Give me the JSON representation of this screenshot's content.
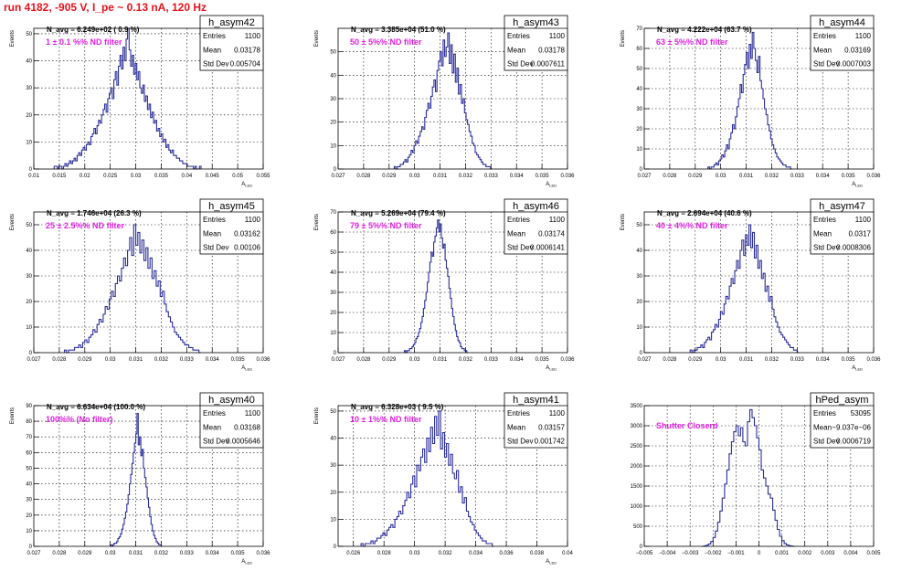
{
  "page_title": "run 4182,  -905 V, I_pe ~ 0.13 nA, 120 Hz",
  "colors": {
    "title": "#e8121c",
    "histogram": "#2b2e9a",
    "annotation": "#e020e0",
    "frame": "#000000",
    "grid": "#000000"
  },
  "chart_data": [
    {
      "type": "histogram",
      "title": "h_asym42",
      "stats": {
        "entries_label": "Entries",
        "entries": "1100",
        "mean_label": "Mean",
        "mean": "0.03178",
        "std_label": "Std Dev",
        "std": "0.005704"
      },
      "n_avg": "N_avg = 6.249e+02 ( 0.9 %)",
      "annotation": "1 ± 0.1 %% ND filter",
      "ylabel": "Events",
      "xlabel": "A_LED",
      "xlim": [
        0.01,
        0.055
      ],
      "ylim": [
        0,
        52
      ],
      "xticks": [
        0.01,
        0.015,
        0.02,
        0.025,
        0.03,
        0.035,
        0.04,
        0.045,
        0.05,
        0.055
      ],
      "xtick_labels": [
        "0.01",
        "0.015",
        "0.02",
        "0.025",
        "0.03",
        "0.035",
        "0.04",
        "0.045",
        "0.05",
        "0.055"
      ],
      "yticks": [
        0,
        10,
        20,
        30,
        40,
        50
      ],
      "ytick_labels": [
        "0",
        "10",
        "20",
        "30",
        "40",
        "50"
      ],
      "bins": {
        "xmin": 0.014,
        "width": 0.0003,
        "values": [
          1,
          1,
          0,
          1,
          1,
          0,
          1,
          2,
          1,
          2,
          3,
          2,
          3,
          4,
          3,
          5,
          6,
          5,
          7,
          8,
          7,
          9,
          10,
          9,
          12,
          13,
          15,
          13,
          16,
          18,
          17,
          20,
          22,
          24,
          21,
          26,
          28,
          30,
          26,
          33,
          36,
          31,
          38,
          42,
          37,
          45,
          40,
          48,
          52,
          44,
          38,
          42,
          35,
          39,
          33,
          36,
          30,
          28,
          31,
          25,
          27,
          22,
          24,
          19,
          21,
          17,
          18,
          14,
          15,
          12,
          13,
          10,
          11,
          8,
          9,
          7,
          6,
          7,
          5,
          5,
          4,
          4,
          3,
          3,
          2,
          2,
          2,
          1,
          1,
          1,
          1,
          0,
          1,
          0,
          0,
          1
        ]
      }
    },
    {
      "type": "histogram",
      "title": "h_asym43",
      "stats": {
        "entries_label": "Entries",
        "entries": "1100",
        "mean_label": "Mean",
        "mean": "0.03178",
        "std_label": "Std Dev",
        "std": "0.0007611"
      },
      "n_avg": "N_avg = 3.385e+04 (51.0 %)",
      "annotation": "50 ± 5%% ND filter",
      "ylabel": "Events",
      "xlabel": "A_LED",
      "xlim": [
        0.027,
        0.036
      ],
      "ylim": [
        0,
        60
      ],
      "xticks": [
        0.027,
        0.028,
        0.029,
        0.03,
        0.031,
        0.032,
        0.033,
        0.034,
        0.035,
        0.036
      ],
      "xtick_labels": [
        "0.027",
        "0.028",
        "0.029",
        "0.03",
        "0.031",
        "0.032",
        "0.033",
        "0.034",
        "0.035",
        "0.036"
      ],
      "yticks": [
        0,
        10,
        20,
        30,
        40,
        50
      ],
      "ytick_labels": [
        "0",
        "10",
        "20",
        "30",
        "40",
        "50"
      ],
      "bins": {
        "xmin": 0.0292,
        "width": 6e-05,
        "values": [
          1,
          0,
          1,
          1,
          2,
          2,
          3,
          4,
          3,
          5,
          6,
          8,
          7,
          10,
          12,
          11,
          14,
          16,
          18,
          17,
          22,
          25,
          28,
          26,
          31,
          35,
          38,
          33,
          42,
          46,
          50,
          44,
          55,
          48,
          52,
          58,
          45,
          53,
          41,
          49,
          37,
          43,
          32,
          36,
          28,
          30,
          24,
          21,
          19,
          16,
          14,
          11,
          10,
          7,
          6,
          5,
          4,
          3,
          2,
          2,
          1,
          1,
          1,
          0
        ]
      }
    },
    {
      "type": "histogram",
      "title": "h_asym44",
      "stats": {
        "entries_label": "Entries",
        "entries": "1100",
        "mean_label": "Mean",
        "mean": "0.03169",
        "std_label": "Std Dev",
        "std": "0.0007003"
      },
      "n_avg": "N_avg = 4.222e+04 (63.7 %)",
      "annotation": "63 ± 5%% ND filter",
      "ylabel": "Events",
      "xlabel": "A_LED",
      "xlim": [
        0.027,
        0.036
      ],
      "ylim": [
        0,
        70
      ],
      "xticks": [
        0.027,
        0.028,
        0.029,
        0.03,
        0.031,
        0.032,
        0.033,
        0.034,
        0.035,
        0.036
      ],
      "xtick_labels": [
        "0.027",
        "0.028",
        "0.029",
        "0.03",
        "0.031",
        "0.032",
        "0.033",
        "0.034",
        "0.035",
        "0.036"
      ],
      "yticks": [
        0,
        10,
        20,
        30,
        40,
        50,
        60,
        70
      ],
      "ytick_labels": [
        "0",
        "10",
        "20",
        "30",
        "40",
        "50",
        "60",
        "70"
      ],
      "bins": {
        "xmin": 0.0295,
        "width": 6e-05,
        "values": [
          1,
          0,
          1,
          1,
          2,
          3,
          2,
          4,
          5,
          7,
          6,
          9,
          12,
          10,
          15,
          18,
          22,
          20,
          26,
          31,
          35,
          42,
          38,
          47,
          52,
          58,
          50,
          62,
          55,
          68,
          60,
          54,
          48,
          56,
          44,
          40,
          35,
          30,
          27,
          22,
          19,
          15,
          12,
          10,
          8,
          6,
          5,
          4,
          3,
          2,
          2,
          1,
          1,
          1,
          0
        ]
      }
    },
    {
      "type": "histogram",
      "title": "h_asym45",
      "stats": {
        "entries_label": "Entries",
        "entries": "1100",
        "mean_label": "Mean",
        "mean": "0.03162",
        "std_label": "Std Dev",
        "std": "0.00106"
      },
      "n_avg": "N_avg = 1.746e+04 (26.3 %)",
      "annotation": "25 ± 2.5%% ND filter",
      "ylabel": "Events",
      "xlabel": "A_LED",
      "xlim": [
        0.027,
        0.036
      ],
      "ylim": [
        0,
        55
      ],
      "xticks": [
        0.027,
        0.028,
        0.029,
        0.03,
        0.031,
        0.032,
        0.033,
        0.034,
        0.035,
        0.036
      ],
      "xtick_labels": [
        "0.027",
        "0.028",
        "0.029",
        "0.03",
        "0.031",
        "0.032",
        "0.033",
        "0.034",
        "0.035",
        "0.036"
      ],
      "yticks": [
        0,
        10,
        20,
        30,
        40,
        50
      ],
      "ytick_labels": [
        "0",
        "10",
        "20",
        "30",
        "40",
        "50"
      ],
      "bins": {
        "xmin": 0.0282,
        "width": 8e-05,
        "values": [
          1,
          0,
          1,
          1,
          1,
          2,
          2,
          3,
          2,
          4,
          5,
          4,
          6,
          7,
          9,
          8,
          11,
          13,
          12,
          15,
          18,
          17,
          21,
          24,
          22,
          27,
          30,
          28,
          33,
          37,
          34,
          40,
          45,
          38,
          50,
          42,
          47,
          39,
          44,
          36,
          41,
          33,
          37,
          29,
          32,
          26,
          28,
          22,
          24,
          19,
          16,
          14,
          12,
          10,
          8,
          7,
          6,
          5,
          4,
          3,
          3,
          2,
          2,
          1,
          1,
          1,
          0
        ]
      }
    },
    {
      "type": "histogram",
      "title": "h_asym46",
      "stats": {
        "entries_label": "Entries",
        "entries": "1100",
        "mean_label": "Mean",
        "mean": "0.03174",
        "std_label": "Std Dev",
        "std": "0.0006141"
      },
      "n_avg": "N_avg = 5.269e+04 (79.4 %)",
      "annotation": "79 ± 5%% ND filter",
      "ylabel": "Events",
      "xlabel": "A_LED",
      "xlim": [
        0.027,
        0.036
      ],
      "ylim": [
        0,
        70
      ],
      "xticks": [
        0.027,
        0.028,
        0.029,
        0.03,
        0.031,
        0.032,
        0.033,
        0.034,
        0.035,
        0.036
      ],
      "xtick_labels": [
        "0.027",
        "0.028",
        "0.029",
        "0.03",
        "0.031",
        "0.032",
        "0.033",
        "0.034",
        "0.035",
        "0.036"
      ],
      "yticks": [
        0,
        10,
        20,
        30,
        40,
        50,
        60,
        70
      ],
      "ytick_labels": [
        "0",
        "10",
        "20",
        "30",
        "40",
        "50",
        "60",
        "70"
      ],
      "bins": {
        "xmin": 0.0296,
        "width": 5e-05,
        "values": [
          1,
          0,
          1,
          1,
          2,
          2,
          3,
          4,
          5,
          7,
          8,
          10,
          12,
          15,
          18,
          22,
          26,
          30,
          35,
          40,
          45,
          50,
          48,
          55,
          58,
          62,
          66,
          60,
          64,
          57,
          52,
          54,
          46,
          42,
          38,
          32,
          27,
          22,
          18,
          14,
          11,
          8,
          6,
          5,
          3,
          2,
          2,
          1,
          1,
          0
        ]
      }
    },
    {
      "type": "histogram",
      "title": "h_asym47",
      "stats": {
        "entries_label": "Entries",
        "entries": "1100",
        "mean_label": "Mean",
        "mean": "0.0317",
        "std_label": "Std Dev",
        "std": "0.0008306"
      },
      "n_avg": "N_avg = 2.694e+04 (40.6 %)",
      "annotation": "40 ± 4%% ND filter",
      "ylabel": "Events",
      "xlabel": "A_LED",
      "xlim": [
        0.027,
        0.036
      ],
      "ylim": [
        0,
        55
      ],
      "xticks": [
        0.027,
        0.028,
        0.029,
        0.03,
        0.031,
        0.032,
        0.033,
        0.034,
        0.035,
        0.036
      ],
      "xtick_labels": [
        "0.027",
        "0.028",
        "0.029",
        "0.03",
        "0.031",
        "0.032",
        "0.033",
        "0.034",
        "0.035",
        "0.036"
      ],
      "yticks": [
        0,
        10,
        20,
        30,
        40,
        50
      ],
      "ytick_labels": [
        "0",
        "10",
        "20",
        "30",
        "40",
        "50"
      ],
      "bins": {
        "xmin": 0.0288,
        "width": 7e-05,
        "values": [
          1,
          0,
          1,
          1,
          2,
          2,
          3,
          2,
          4,
          5,
          6,
          5,
          8,
          9,
          11,
          10,
          13,
          16,
          15,
          19,
          22,
          21,
          26,
          29,
          27,
          32,
          36,
          33,
          40,
          44,
          38,
          46,
          42,
          50,
          41,
          47,
          37,
          42,
          33,
          36,
          29,
          31,
          24,
          26,
          20,
          22,
          17,
          14,
          12,
          10,
          8,
          7,
          6,
          5,
          4,
          3,
          2,
          2,
          1,
          1,
          0
        ]
      }
    },
    {
      "type": "histogram",
      "title": "h_asym40",
      "stats": {
        "entries_label": "Entries",
        "entries": "1100",
        "mean_label": "Mean",
        "mean": "0.03168",
        "std_label": "Std Dev",
        "std": "0.0005646"
      },
      "n_avg": "N_avg = 6.634e+04 (100.0 %)",
      "annotation": "100%% (No filter)",
      "ylabel": "Events",
      "xlabel": "A_LED",
      "xlim": [
        0.027,
        0.036
      ],
      "ylim": [
        0,
        90
      ],
      "xticks": [
        0.027,
        0.028,
        0.029,
        0.03,
        0.031,
        0.032,
        0.033,
        0.034,
        0.035,
        0.036
      ],
      "xtick_labels": [
        "0.027",
        "0.028",
        "0.029",
        "0.03",
        "0.031",
        "0.032",
        "0.033",
        "0.034",
        "0.035",
        "0.036"
      ],
      "yticks": [
        0,
        10,
        20,
        30,
        40,
        50,
        60,
        70,
        80,
        90
      ],
      "ytick_labels": [
        "0",
        "10",
        "20",
        "30",
        "40",
        "50",
        "60",
        "70",
        "80",
        "90"
      ],
      "bins": {
        "xmin": 0.03,
        "width": 5e-05,
        "values": [
          1,
          0,
          1,
          2,
          2,
          3,
          5,
          6,
          8,
          11,
          14,
          18,
          22,
          27,
          33,
          40,
          46,
          53,
          60,
          66,
          72,
          85,
          65,
          70,
          58,
          62,
          50,
          44,
          38,
          31,
          25,
          19,
          14,
          10,
          7,
          5,
          3,
          2,
          1,
          1,
          0
        ]
      }
    },
    {
      "type": "histogram",
      "title": "h_asym41",
      "stats": {
        "entries_label": "Entries",
        "entries": "1100",
        "mean_label": "Mean",
        "mean": "0.03157",
        "std_label": "Std Dev",
        "std": "0.001742"
      },
      "n_avg": "N_avg = 6.328e+03 ( 9.5 %)",
      "annotation": "10 ± 1%% ND filter",
      "ylabel": "Events",
      "xlabel": "A_LED",
      "xlim": [
        0.025,
        0.04
      ],
      "ylim": [
        0,
        52
      ],
      "xticks": [
        0.026,
        0.028,
        0.03,
        0.032,
        0.034,
        0.036,
        0.038,
        0.04
      ],
      "xtick_labels": [
        "0.026",
        "0.028",
        "0.03",
        "0.032",
        "0.034",
        "0.036",
        "0.038",
        "0.04"
      ],
      "yticks": [
        0,
        10,
        20,
        30,
        40,
        50
      ],
      "ytick_labels": [
        "0",
        "10",
        "20",
        "30",
        "40",
        "50"
      ],
      "bins": {
        "xmin": 0.0265,
        "width": 0.00013,
        "values": [
          1,
          0,
          1,
          1,
          1,
          2,
          1,
          2,
          3,
          3,
          4,
          5,
          4,
          6,
          7,
          8,
          7,
          10,
          11,
          13,
          12,
          15,
          17,
          20,
          18,
          23,
          26,
          22,
          30,
          28,
          33,
          36,
          31,
          40,
          35,
          44,
          38,
          48,
          41,
          50,
          36,
          42,
          33,
          38,
          30,
          34,
          27,
          25,
          28,
          20,
          22,
          16,
          18,
          13,
          11,
          9,
          8,
          6,
          5,
          4,
          3,
          2,
          2,
          1,
          1,
          1,
          0
        ]
      }
    },
    {
      "type": "histogram",
      "title": "hPed_asym",
      "stats": {
        "entries_label": "Entries",
        "entries": "53095",
        "mean_label": "Mean",
        "mean": "−9.037e−06",
        "std_label": "Std Dev",
        "std": "0.0006719"
      },
      "n_avg": "",
      "annotation": "Shutter Closerd",
      "ylabel": "",
      "xlabel": "",
      "xlim": [
        -0.005,
        0.005
      ],
      "ylim": [
        0,
        3500
      ],
      "xticks": [
        -0.005,
        -0.004,
        -0.003,
        -0.002,
        -0.001,
        0,
        0.001,
        0.002,
        0.003,
        0.004,
        0.005
      ],
      "xtick_labels": [
        "−0.005",
        "−0.004",
        "−0.003",
        "−0.002",
        "−0.001",
        "0",
        "0.001",
        "0.002",
        "0.003",
        "0.004",
        "0.005"
      ],
      "yticks": [
        0,
        500,
        1000,
        1500,
        2000,
        2500,
        3000,
        3500
      ],
      "ytick_labels": [
        "0",
        "500",
        "1000",
        "1500",
        "2000",
        "2500",
        "3000",
        "3500"
      ],
      "bins": {
        "xmin": -0.0025,
        "width": 0.0001,
        "values": [
          0,
          10,
          30,
          60,
          120,
          220,
          380,
          600,
          880,
          1200,
          1550,
          1900,
          2300,
          2600,
          2850,
          3000,
          2750,
          2950,
          2600,
          2500,
          3100,
          3400,
          3200,
          3000,
          2700,
          2400,
          1900,
          1700,
          1500,
          1300,
          1200,
          900,
          650,
          420,
          250,
          140,
          70,
          35,
          15,
          5,
          0
        ]
      }
    }
  ]
}
